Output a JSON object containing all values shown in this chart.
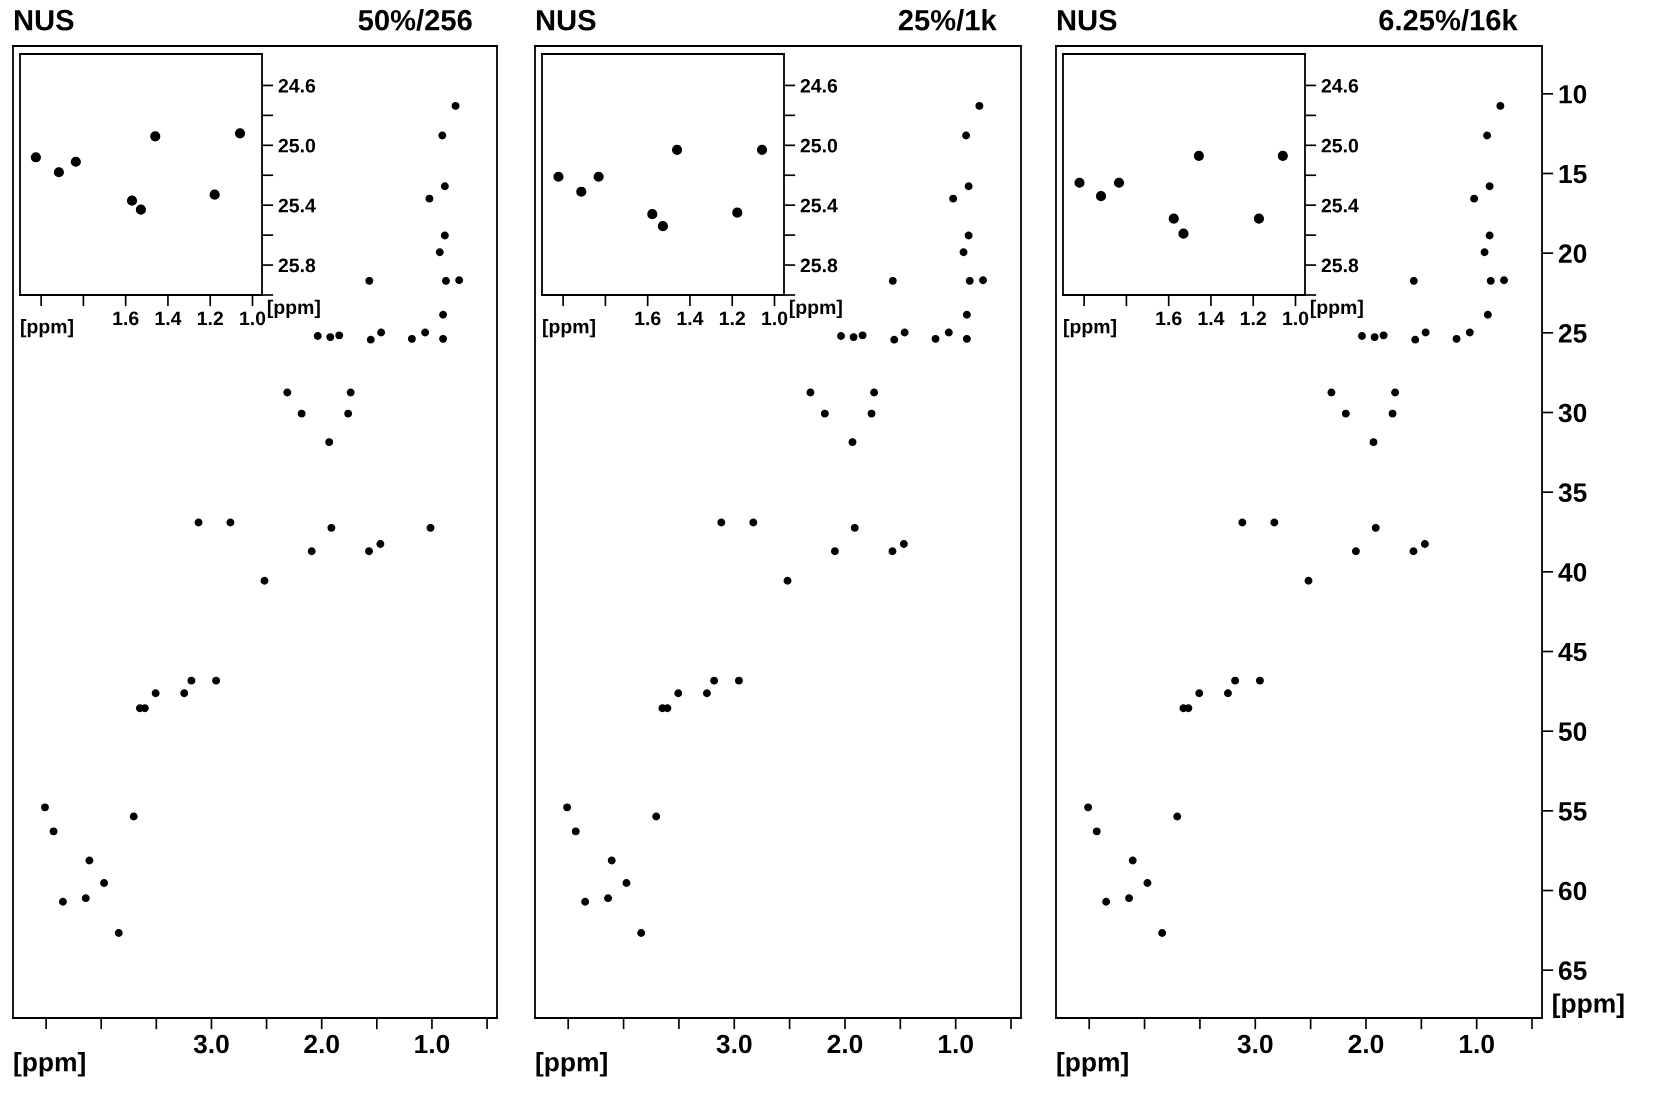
{
  "chart_data": [
    {
      "type": "scatter",
      "title": "NUS",
      "subtitle": "50%/256",
      "xlabel": "[ppm]",
      "tick_labels": "x",
      "marker": "circle",
      "xlim": [
        4.8,
        0.41
      ],
      "ylim": [
        68,
        7
      ],
      "xticks": [
        {
          "value": 4.5,
          "label": null
        },
        {
          "value": 4.0,
          "label": null
        },
        {
          "value": 3.5,
          "label": null
        },
        {
          "value": 3.0,
          "label": "3.0"
        },
        {
          "value": 2.5,
          "label": null
        },
        {
          "value": 2.0,
          "label": "2.0"
        },
        {
          "value": 1.5,
          "label": null
        },
        {
          "value": 1.0,
          "label": "1.0"
        },
        {
          "value": 0.5,
          "label": null
        }
      ],
      "yticks": [
        10,
        15,
        20,
        25,
        30,
        35,
        40,
        45,
        50,
        55,
        60,
        65
      ],
      "series": [
        {
          "color": "#000000",
          "x": [
            0.786,
            0.906,
            0.883,
            1.023,
            0.883,
            0.929,
            1.568,
            0.873,
            0.753,
            0.899,
            2.036,
            1.922,
            1.841,
            1.555,
            1.461,
            1.182,
            1.062,
            0.899,
            2.312,
            1.737,
            2.182,
            1.76,
            1.932,
            3.117,
            2.828,
            1.912,
            1.013,
            1.468,
            2.091,
            1.571,
            2.519,
            3.506,
            3.649,
            3.604,
            3.247,
            3.182,
            2.958,
            4.51,
            4.432,
            3.705,
            4.107,
            3.974,
            4.347,
            4.14,
            3.841
          ],
          "values": [
            10.76,
            12.62,
            15.8,
            16.58,
            18.89,
            19.94,
            21.74,
            21.74,
            21.7,
            23.87,
            25.2,
            25.27,
            25.16,
            25.43,
            24.98,
            25.38,
            24.98,
            25.38,
            28.75,
            28.75,
            30.07,
            30.07,
            31.86,
            36.9,
            36.9,
            37.24,
            37.24,
            38.25,
            38.71,
            38.71,
            40.56,
            47.62,
            48.56,
            48.56,
            47.62,
            46.83,
            46.83,
            54.78,
            56.29,
            55.35,
            58.12,
            59.53,
            60.7,
            60.48,
            62.67
          ]
        }
      ]
    },
    {
      "type": "scatter",
      "xlabel": "[ppm]",
      "ylabel": "[ppm]",
      "marker": "circle",
      "xlim": [
        2.1,
        0.955
      ],
      "ylim": [
        26.0,
        24.39
      ],
      "xticks": [
        {
          "value": 2.0,
          "label": null
        },
        {
          "value": 1.8,
          "label": null
        },
        1.6,
        1.4,
        1.2,
        {
          "value": 1.0,
          "label": "1.0"
        }
      ],
      "yticks": [
        24.6,
        {
          "value": 24.8,
          "label": null
        },
        {
          "value": 25.0,
          "label": "25.0"
        },
        {
          "value": 25.2,
          "label": null
        },
        25.4,
        {
          "value": 25.6,
          "label": null
        },
        25.8,
        {
          "value": 26.0,
          "label": null
        }
      ],
      "series": [
        {
          "color": "#000000",
          "x": [
            2.025,
            1.916,
            1.836,
            1.57,
            1.528,
            1.46,
            1.179,
            1.059
          ],
          "values": [
            25.08,
            25.18,
            25.11,
            25.37,
            25.43,
            24.94,
            25.33,
            24.92
          ]
        }
      ]
    },
    {
      "type": "scatter",
      "title": "NUS",
      "subtitle": "25%/1k",
      "xlabel": "[ppm]",
      "tick_labels": "x",
      "marker": "circle",
      "xlim": [
        4.8,
        0.41
      ],
      "ylim": [
        68,
        7
      ],
      "xticks": [
        {
          "value": 4.5,
          "label": null
        },
        {
          "value": 4.0,
          "label": null
        },
        {
          "value": 3.5,
          "label": null
        },
        {
          "value": 3.0,
          "label": "3.0"
        },
        {
          "value": 2.5,
          "label": null
        },
        {
          "value": 2.0,
          "label": "2.0"
        },
        {
          "value": 1.5,
          "label": null
        },
        {
          "value": 1.0,
          "label": "1.0"
        },
        {
          "value": 0.5,
          "label": null
        }
      ],
      "yticks": [
        10,
        15,
        20,
        25,
        30,
        35,
        40,
        45,
        50,
        55,
        60,
        65
      ],
      "series": [
        {
          "color": "#000000",
          "x": [
            0.786,
            0.906,
            0.883,
            1.023,
            0.883,
            0.929,
            1.568,
            0.873,
            0.753,
            0.899,
            2.036,
            1.922,
            1.841,
            1.555,
            1.461,
            1.182,
            1.062,
            0.899,
            2.312,
            1.737,
            2.182,
            1.76,
            1.932,
            3.117,
            2.828,
            1.912,
            1.468,
            2.091,
            1.571,
            2.519,
            3.506,
            3.649,
            3.604,
            3.247,
            3.182,
            2.958,
            4.51,
            4.432,
            3.705,
            4.107,
            3.974,
            4.347,
            4.14,
            3.841
          ],
          "values": [
            10.76,
            12.62,
            15.8,
            16.58,
            18.89,
            19.94,
            21.74,
            21.74,
            21.7,
            23.87,
            25.2,
            25.27,
            25.16,
            25.43,
            24.98,
            25.38,
            24.98,
            25.38,
            28.75,
            28.75,
            30.07,
            30.07,
            31.86,
            36.9,
            36.9,
            37.24,
            38.25,
            38.71,
            38.71,
            40.56,
            47.62,
            48.56,
            48.56,
            47.62,
            46.83,
            46.83,
            54.78,
            56.29,
            55.35,
            58.12,
            59.53,
            60.7,
            60.48,
            62.67
          ]
        }
      ]
    },
    {
      "type": "scatter",
      "xlabel": "[ppm]",
      "ylabel": "[ppm]",
      "marker": "circle",
      "xlim": [
        2.1,
        0.955
      ],
      "ylim": [
        26.0,
        24.39
      ],
      "xticks": [
        {
          "value": 2.0,
          "label": null
        },
        {
          "value": 1.8,
          "label": null
        },
        1.6,
        1.4,
        1.2,
        {
          "value": 1.0,
          "label": "1.0"
        }
      ],
      "yticks": [
        24.6,
        {
          "value": 24.8,
          "label": null
        },
        {
          "value": 25.0,
          "label": "25.0"
        },
        {
          "value": 25.2,
          "label": null
        },
        25.4,
        {
          "value": 25.6,
          "label": null
        },
        25.8,
        {
          "value": 26.0,
          "label": null
        }
      ],
      "series": [
        {
          "color": "#000000",
          "x": [
            2.022,
            1.914,
            1.832,
            1.578,
            1.528,
            1.461,
            1.176,
            1.059
          ],
          "values": [
            25.21,
            25.31,
            25.21,
            25.46,
            25.54,
            25.03,
            25.45,
            25.03
          ]
        }
      ]
    },
    {
      "type": "scatter",
      "title": "NUS",
      "subtitle": "6.25%/16k",
      "xlabel": "[ppm]",
      "ylabel": "[ppm]",
      "marker": "circle",
      "xlim": [
        4.8,
        0.41
      ],
      "ylim": [
        68,
        7
      ],
      "xticks": [
        {
          "value": 4.5,
          "label": null
        },
        {
          "value": 4.0,
          "label": null
        },
        {
          "value": 3.5,
          "label": null
        },
        {
          "value": 3.0,
          "label": "3.0"
        },
        {
          "value": 2.5,
          "label": null
        },
        {
          "value": 2.0,
          "label": "2.0"
        },
        {
          "value": 1.5,
          "label": null
        },
        {
          "value": 1.0,
          "label": "1.0"
        },
        {
          "value": 0.5,
          "label": null
        }
      ],
      "yticks": [
        10,
        15,
        20,
        25,
        30,
        35,
        40,
        45,
        50,
        55,
        60,
        65
      ],
      "series": [
        {
          "color": "#000000",
          "x": [
            0.786,
            0.906,
            0.883,
            1.023,
            0.883,
            0.929,
            1.568,
            0.873,
            0.753,
            0.899,
            2.036,
            1.922,
            1.841,
            1.555,
            1.461,
            1.182,
            1.062,
            2.312,
            1.737,
            2.182,
            1.76,
            1.932,
            3.117,
            2.828,
            1.912,
            1.468,
            2.091,
            1.571,
            2.519,
            3.506,
            3.649,
            3.604,
            3.247,
            3.182,
            2.958,
            4.51,
            4.432,
            3.705,
            4.107,
            3.974,
            4.347,
            4.14,
            3.841
          ],
          "values": [
            10.76,
            12.62,
            15.8,
            16.58,
            18.89,
            19.94,
            21.74,
            21.74,
            21.7,
            23.87,
            25.2,
            25.27,
            25.16,
            25.43,
            24.98,
            25.38,
            24.98,
            28.75,
            28.75,
            30.07,
            30.07,
            31.86,
            36.9,
            36.9,
            37.24,
            38.25,
            38.71,
            38.71,
            40.56,
            47.62,
            48.56,
            48.56,
            47.62,
            46.83,
            46.83,
            54.78,
            56.29,
            55.35,
            58.12,
            59.53,
            60.7,
            60.48,
            62.67
          ]
        }
      ]
    },
    {
      "type": "scatter",
      "xlabel": "[ppm]",
      "ylabel": "[ppm]",
      "marker": "circle",
      "xlim": [
        2.1,
        0.955
      ],
      "ylim": [
        26.0,
        24.39
      ],
      "xticks": [
        {
          "value": 2.0,
          "label": null
        },
        {
          "value": 1.8,
          "label": null
        },
        1.6,
        1.4,
        1.2,
        {
          "value": 1.0,
          "label": "1.0"
        }
      ],
      "yticks": [
        24.6,
        {
          "value": 24.8,
          "label": null
        },
        {
          "value": 25.0,
          "label": "25.0"
        },
        {
          "value": 25.2,
          "label": null
        },
        25.4,
        {
          "value": 25.6,
          "label": null
        },
        25.8,
        {
          "value": 26.0,
          "label": null
        }
      ],
      "series": [
        {
          "color": "#000000",
          "x": [
            2.022,
            1.92,
            1.835,
            1.576,
            1.53,
            1.457,
            1.173,
            1.06
          ],
          "values": [
            25.25,
            25.34,
            25.25,
            25.49,
            25.59,
            25.07,
            25.49,
            25.07
          ]
        }
      ]
    }
  ]
}
